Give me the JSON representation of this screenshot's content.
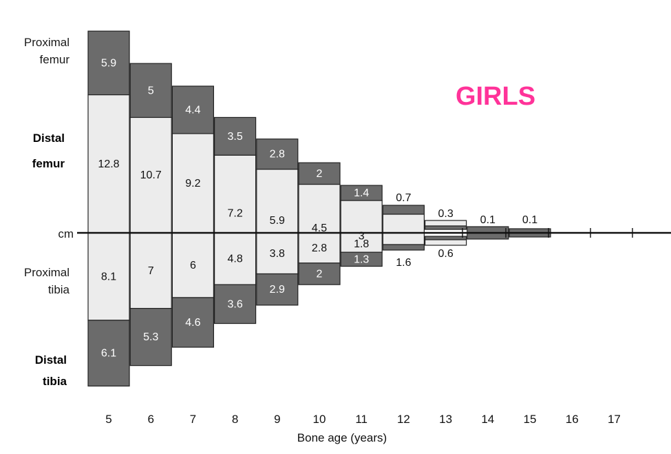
{
  "chart_data": {
    "type": "bar",
    "title": "GIRLS",
    "xlabel": "Bone age (years)",
    "center_line_label": "cm",
    "categories": [
      "5",
      "6",
      "7",
      "8",
      "9",
      "10",
      "11",
      "12",
      "13",
      "14",
      "15",
      "16",
      "17"
    ],
    "series": [
      {
        "name": "Proximal femur",
        "name_lines": [
          "Proximal",
          "femur"
        ],
        "direction": "up",
        "shade": "dark",
        "values": [
          5.9,
          5,
          4.4,
          3.5,
          2.8,
          2,
          1.4,
          0.7,
          null,
          null,
          null,
          null,
          null
        ]
      },
      {
        "name": "Distal femur",
        "name_lines": [
          "Distal",
          "femur"
        ],
        "direction": "up",
        "shade": "light",
        "values": [
          12.8,
          10.7,
          9.2,
          7.2,
          5.9,
          4.5,
          3,
          null,
          0.3,
          0.1,
          0.1,
          null,
          null
        ]
      },
      {
        "name": "Proximal tibia",
        "name_lines": [
          "Proximal",
          "tibia"
        ],
        "direction": "down",
        "shade": "light",
        "values": [
          8.1,
          7,
          6,
          4.8,
          3.8,
          2.8,
          1.8,
          1.6,
          0.6,
          null,
          null,
          null,
          null
        ]
      },
      {
        "name": "Distal tibia",
        "name_lines": [
          "Distal",
          "tibia"
        ],
        "direction": "down",
        "shade": "dark",
        "values": [
          6.1,
          5.3,
          4.6,
          3.6,
          2.9,
          2,
          1.3,
          null,
          null,
          null,
          null,
          null,
          null
        ]
      }
    ],
    "colors": {
      "dark": "#6b6b6b",
      "light": "#ececec",
      "title": "#ff3399",
      "stroke": "#222222"
    }
  }
}
